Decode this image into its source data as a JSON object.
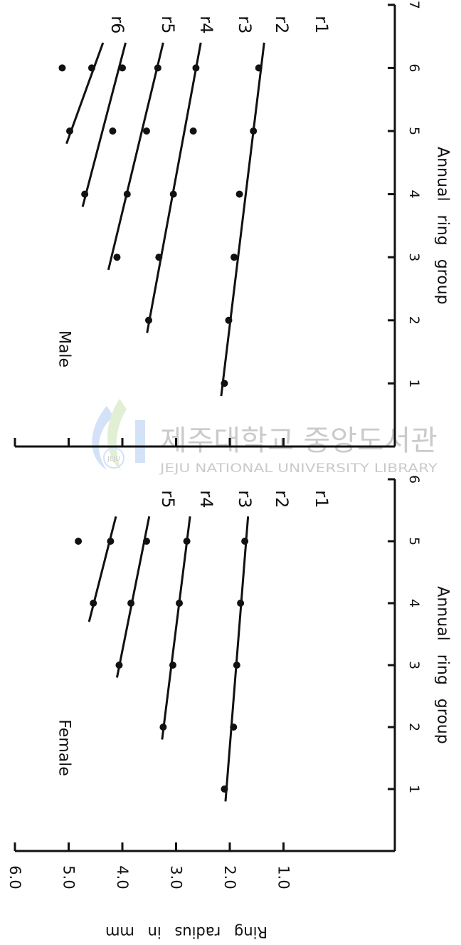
{
  "watermark": {
    "title": "제주대학교 중앙도서관",
    "subtitle": "JEJU NATIONAL UNIVERSITY LIBRARY",
    "seal_text": "JEJU"
  },
  "chart_data": [
    {
      "type": "line",
      "annotation": "Female",
      "xlabel": "Annual ring group",
      "ylabel": "Ring radius in mm",
      "xlim": [
        0,
        6
      ],
      "ylim": [
        0,
        6.0
      ],
      "xticks": [
        1,
        2,
        3,
        4,
        5,
        6
      ],
      "yticks": [
        1.0,
        2.0,
        3.0,
        4.0,
        5.0,
        6.0
      ],
      "ytick_labels": [
        "1.0",
        "2.0",
        "3.0",
        "4.0",
        "5.0",
        "6.0"
      ],
      "series": [
        {
          "name": "r1",
          "x": [
            1,
            2,
            3,
            4,
            5
          ],
          "values": [
            2.1,
            1.93,
            1.87,
            1.8,
            1.72
          ],
          "fit": [
            [
              0.8,
              2.08
            ],
            [
              5.4,
              1.66
            ]
          ]
        },
        {
          "name": "r2",
          "x": [
            2,
            3,
            4,
            5
          ],
          "values": [
            3.24,
            3.06,
            2.94,
            2.8
          ],
          "fit": [
            [
              1.8,
              3.26
            ],
            [
              5.4,
              2.74
            ]
          ]
        },
        {
          "name": "r3",
          "x": [
            3,
            4,
            5
          ],
          "values": [
            4.06,
            3.84,
            3.55
          ],
          "fit": [
            [
              2.8,
              4.1
            ],
            [
              5.4,
              3.5
            ]
          ]
        },
        {
          "name": "r4",
          "x": [
            4,
            5
          ],
          "values": [
            4.54,
            4.22
          ],
          "fit": [
            [
              3.7,
              4.62
            ],
            [
              5.4,
              4.12
            ]
          ]
        },
        {
          "name": "r5",
          "x": [
            5
          ],
          "values": [
            4.82
          ],
          "fit": []
        }
      ]
    },
    {
      "type": "line",
      "annotation": "Male",
      "xlabel": "Annual ring group",
      "ylabel": "",
      "xlim": [
        0,
        7
      ],
      "ylim": [
        0,
        6.0
      ],
      "xticks": [
        1,
        2,
        3,
        4,
        5,
        6,
        7
      ],
      "yticks": [
        1.0,
        2.0,
        3.0,
        4.0,
        5.0,
        6.0
      ],
      "ytick_labels": [],
      "series": [
        {
          "name": "r1",
          "x": [
            1,
            2,
            3,
            4,
            5,
            6
          ],
          "values": [
            2.1,
            2.02,
            1.92,
            1.82,
            1.56,
            1.46
          ],
          "fit": [
            [
              0.8,
              2.16
            ],
            [
              6.4,
              1.36
            ]
          ]
        },
        {
          "name": "r2",
          "x": [
            2,
            3,
            4,
            5,
            6
          ],
          "values": [
            3.51,
            3.32,
            3.05,
            2.68,
            2.63
          ],
          "fit": [
            [
              1.8,
              3.54
            ],
            [
              6.4,
              2.54
            ]
          ]
        },
        {
          "name": "r3",
          "x": [
            3,
            4,
            5,
            6
          ],
          "values": [
            4.1,
            3.91,
            3.55,
            3.34
          ],
          "fit": [
            [
              2.8,
              4.26
            ],
            [
              6.4,
              3.24
            ]
          ]
        },
        {
          "name": "r4",
          "x": [
            4,
            5,
            6
          ],
          "values": [
            4.7,
            4.18,
            4.0
          ],
          "fit": [
            [
              3.8,
              4.74
            ],
            [
              6.4,
              3.94
            ]
          ]
        },
        {
          "name": "r5",
          "x": [
            5,
            6
          ],
          "values": [
            4.98,
            4.57
          ],
          "fit": [
            [
              4.8,
              5.04
            ],
            [
              6.4,
              4.36
            ]
          ]
        },
        {
          "name": "r6",
          "x": [
            6
          ],
          "values": [
            5.12
          ],
          "fit": []
        }
      ]
    }
  ]
}
